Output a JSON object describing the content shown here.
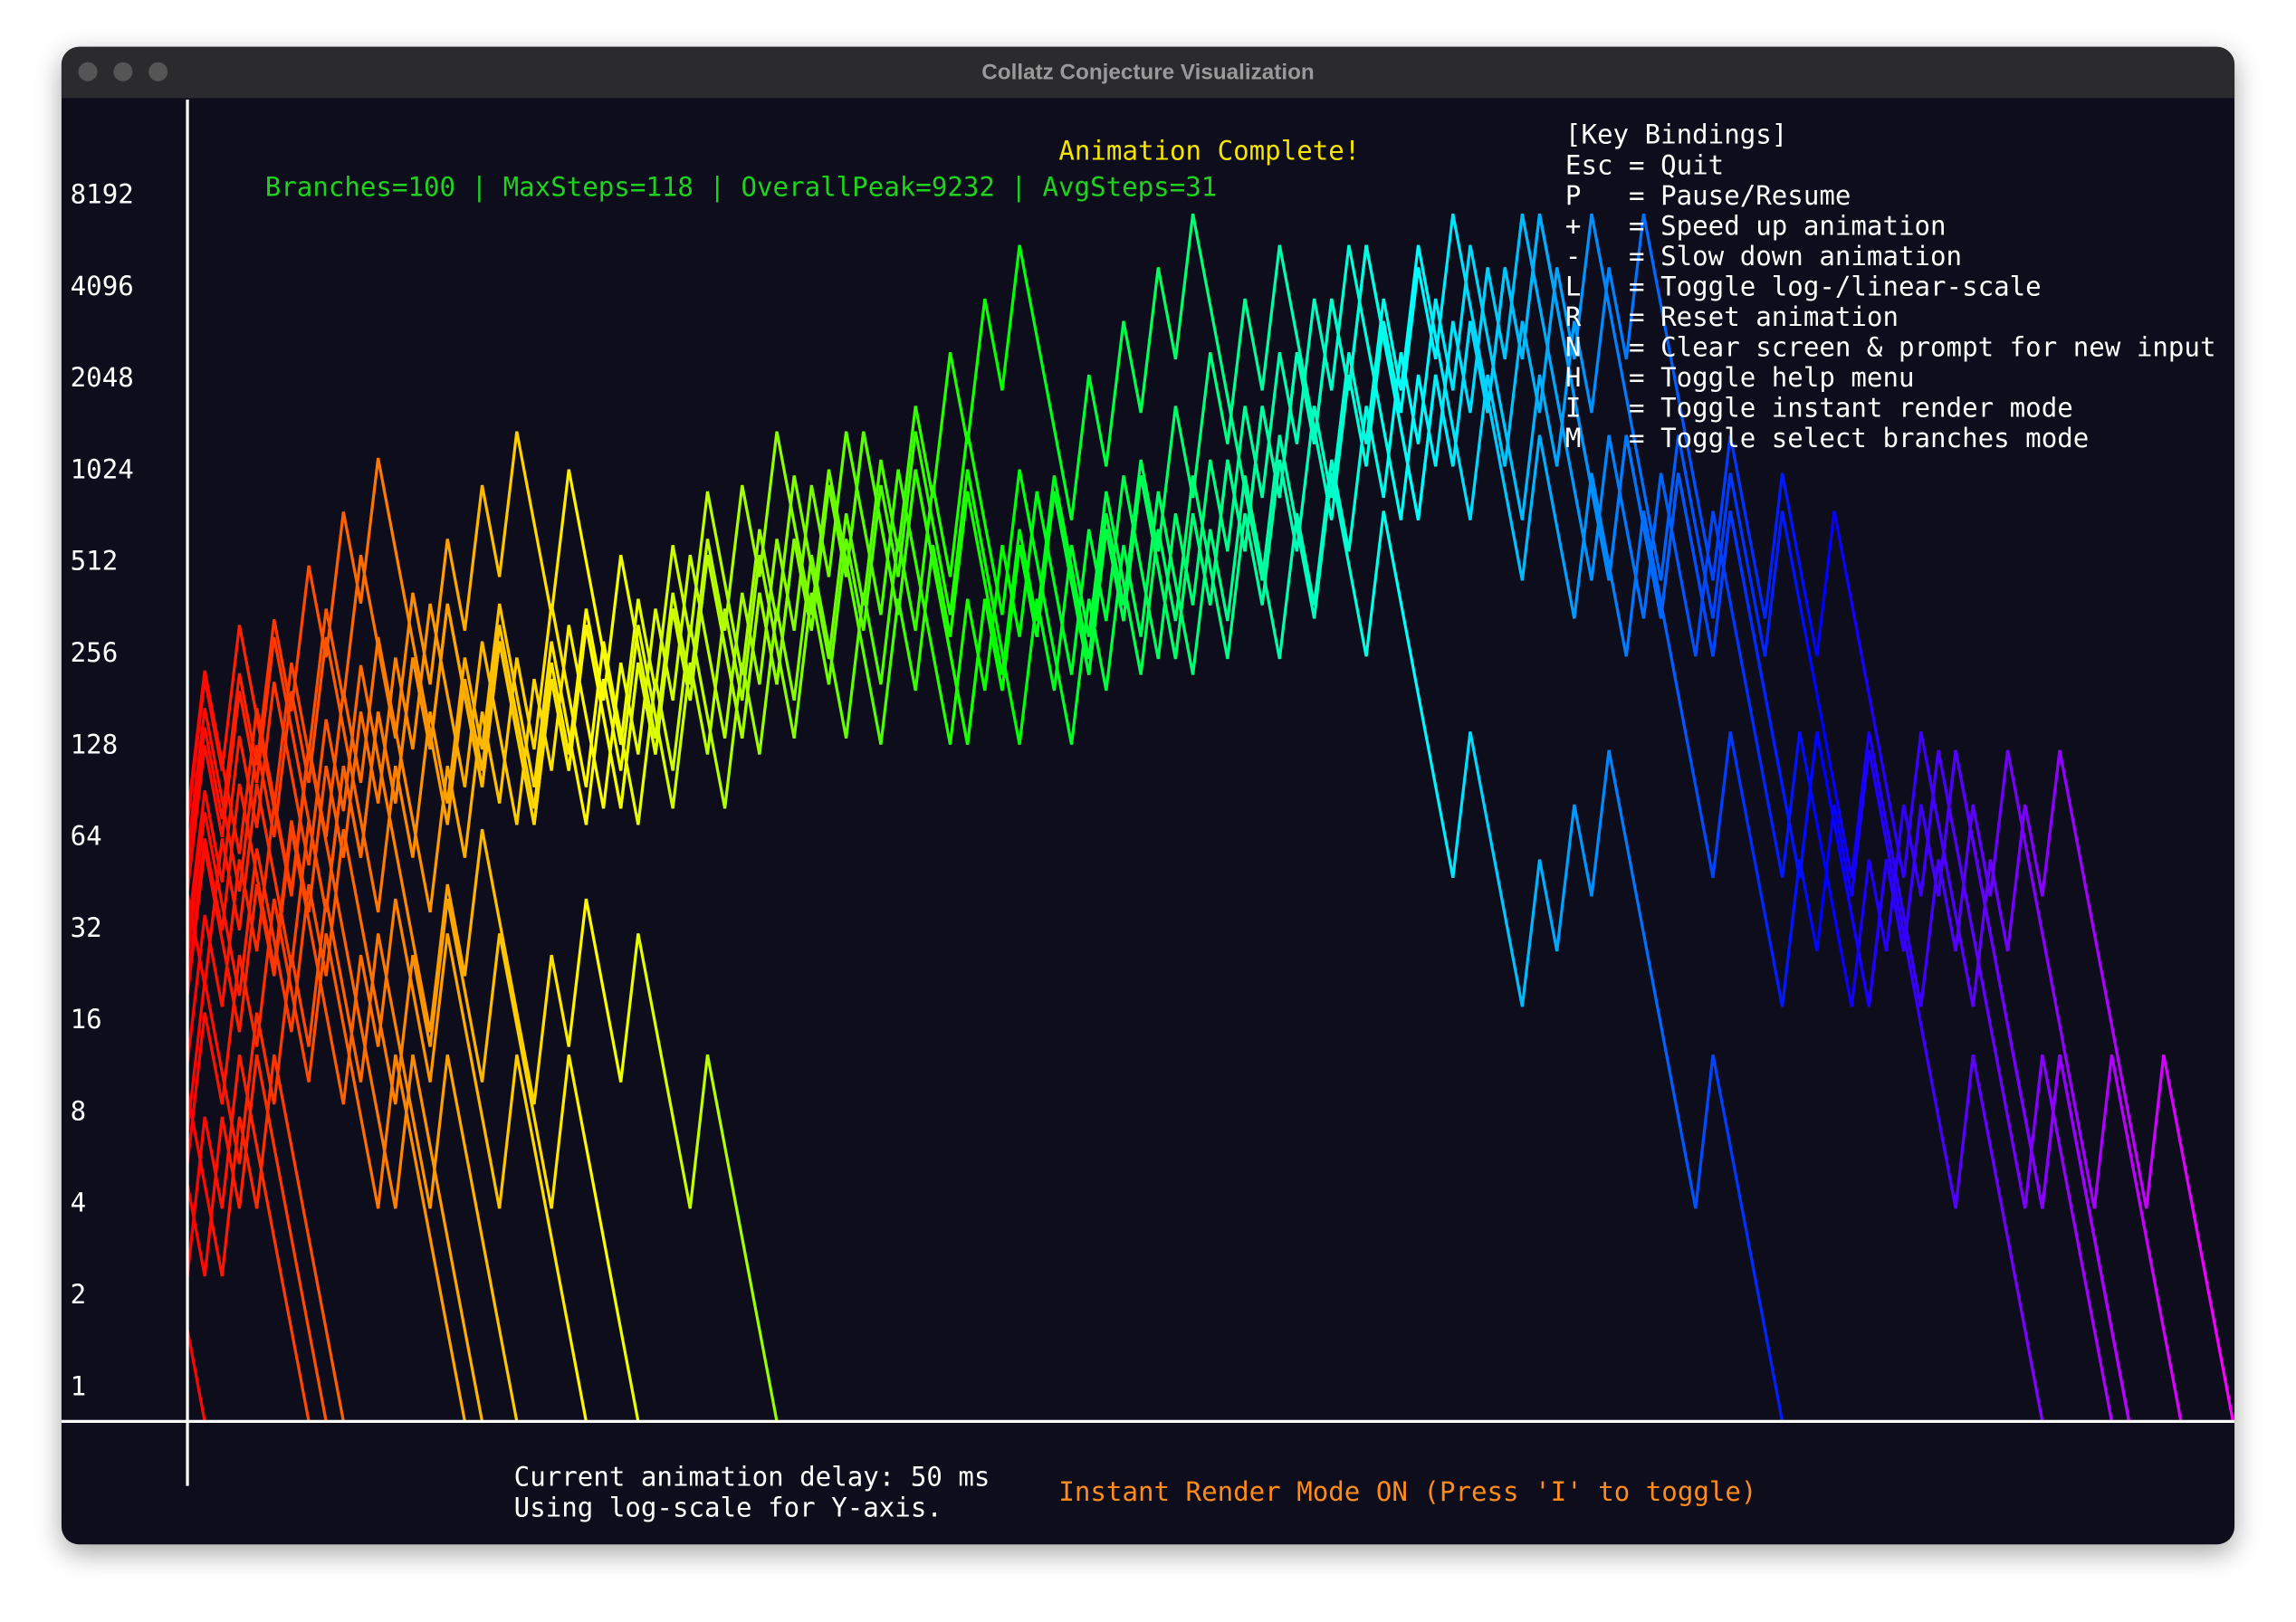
{
  "window": {
    "title": "Collatz Conjecture Visualization"
  },
  "chart_data": {
    "type": "line",
    "status": "Animation Complete!",
    "stats": "Branches=100 | MaxSteps=118 | OverallPeak=9232 | AvgSteps=31",
    "log_scale": true,
    "log_base": 2,
    "xlim": [
      0,
      118
    ],
    "ylim": [
      1,
      21900
    ],
    "yticks": [
      1,
      2,
      4,
      8,
      16,
      32,
      64,
      128,
      256,
      512,
      1024,
      2048,
      4096,
      8192
    ],
    "gradient": [
      "#ff0000",
      "#ffff00",
      "#00ff00",
      "#00ffff",
      "#0000ff",
      "#ff00ff"
    ],
    "series": [
      {
        "values": [
          97,
          292,
          146,
          73,
          220,
          110,
          55,
          166,
          83,
          250,
          125,
          376,
          188,
          94,
          47,
          142,
          71,
          214,
          107,
          322,
          161,
          484,
          242,
          121,
          364,
          182,
          91,
          274,
          137,
          412,
          206,
          103,
          310,
          155,
          466,
          233,
          700,
          350,
          175,
          526,
          263,
          790,
          395,
          1186,
          593,
          1780,
          890,
          445,
          1336,
          668,
          334,
          167,
          502,
          251,
          754,
          377,
          1132,
          566,
          283,
          850,
          425,
          1276,
          638,
          319,
          958,
          479,
          1438,
          719,
          2158,
          1079,
          3238,
          1619,
          4858,
          2429,
          7288,
          3644,
          1822,
          911,
          2734,
          1367,
          4102,
          2051,
          6154,
          3077,
          9232,
          4616,
          2308,
          1154,
          577,
          1732,
          866,
          433,
          1300,
          650,
          325,
          976,
          488,
          244,
          122,
          61,
          184,
          92,
          46,
          23,
          70,
          35,
          106,
          53,
          160,
          80,
          40,
          20,
          10,
          5,
          16,
          8,
          4,
          2,
          1
        ]
      },
      {
        "values": [
          73,
          220,
          110,
          55,
          166,
          83,
          250,
          125,
          376,
          188,
          94,
          47,
          142,
          71,
          214,
          107,
          322,
          161,
          484,
          242,
          121,
          364,
          182,
          91,
          274,
          137,
          412,
          206,
          103,
          310,
          155,
          466,
          233,
          700,
          350,
          175,
          526,
          263,
          790,
          395,
          1186,
          593,
          1780,
          890,
          445,
          1336,
          668,
          334,
          167,
          502,
          251,
          754,
          377,
          1132,
          566,
          283,
          850,
          425,
          1276,
          638,
          319,
          958,
          479,
          1438,
          719,
          2158,
          1079,
          3238,
          1619,
          4858,
          2429,
          7288,
          3644,
          1822,
          911,
          2734,
          1367,
          4102,
          2051,
          6154,
          3077,
          9232,
          4616,
          2308,
          1154,
          577,
          1732,
          866,
          433,
          1300,
          650,
          325,
          976,
          488,
          244,
          122,
          61,
          184,
          92,
          46,
          23,
          70,
          35,
          106,
          53,
          160,
          80,
          40,
          20,
          10,
          5,
          16,
          8,
          4,
          2,
          1
        ]
      },
      {
        "values": [
          55,
          166,
          83,
          250,
          125,
          376,
          188,
          94,
          47,
          142,
          71,
          214,
          107,
          322,
          161,
          484,
          242,
          121,
          364,
          182,
          91,
          274,
          137,
          412,
          206,
          103,
          310,
          155,
          466,
          233,
          700,
          350,
          175,
          526,
          263,
          790,
          395,
          1186,
          593,
          1780,
          890,
          445,
          1336,
          668,
          334,
          167,
          502,
          251,
          754,
          377,
          1132,
          566,
          283,
          850,
          425,
          1276,
          638,
          319,
          958,
          479,
          1438,
          719,
          2158,
          1079,
          3238,
          1619,
          4858,
          2429,
          7288,
          3644,
          1822,
          911,
          2734,
          1367,
          4102,
          2051,
          6154,
          3077,
          9232,
          4616,
          2308,
          1154,
          577,
          1732,
          866,
          433,
          1300,
          650,
          325,
          976,
          488,
          244,
          122,
          61,
          184,
          92,
          46,
          23,
          70,
          35,
          106,
          53,
          160,
          80,
          40,
          20,
          10,
          5,
          16,
          8,
          4,
          2,
          1
        ]
      },
      {
        "values": [
          54,
          27,
          82,
          41,
          124,
          62,
          31,
          94,
          47,
          142,
          71,
          214,
          107,
          322,
          161,
          484,
          242,
          121,
          364,
          182,
          91,
          274,
          137,
          412,
          206,
          103,
          310,
          155,
          466,
          233,
          700,
          350,
          175,
          526,
          263,
          790,
          395,
          1186,
          593,
          1780,
          890,
          445,
          1336,
          668,
          334,
          167,
          502,
          251,
          754,
          377,
          1132,
          566,
          283,
          850,
          425,
          1276,
          638,
          319,
          958,
          479,
          1438,
          719,
          2158,
          1079,
          3238,
          1619,
          4858,
          2429,
          7288,
          3644,
          1822,
          911,
          2734,
          1367,
          4102,
          2051,
          6154,
          3077,
          9232,
          4616,
          2308,
          1154,
          577,
          1732,
          866,
          433,
          1300,
          650,
          325,
          976,
          488,
          244,
          122,
          61,
          184,
          92,
          46,
          23,
          70,
          35,
          106,
          53,
          160,
          80,
          40,
          20,
          10,
          5,
          16,
          8,
          4,
          2,
          1
        ]
      },
      {
        "values": [
          27,
          82,
          41,
          124,
          62,
          31,
          94,
          47,
          142,
          71,
          214,
          107,
          322,
          161,
          484,
          242,
          121,
          364,
          182,
          91,
          274,
          137,
          412,
          206,
          103,
          310,
          155,
          466,
          233,
          700,
          350,
          175,
          526,
          263,
          790,
          395,
          1186,
          593,
          1780,
          890,
          445,
          1336,
          668,
          334,
          167,
          502,
          251,
          754,
          377,
          1132,
          566,
          283,
          850,
          425,
          1276,
          638,
          319,
          958,
          479,
          1438,
          719,
          2158,
          1079,
          3238,
          1619,
          4858,
          2429,
          7288,
          3644,
          1822,
          911,
          2734,
          1367,
          4102,
          2051,
          6154,
          3077,
          9232,
          4616,
          2308,
          1154,
          577,
          1732,
          866,
          433,
          1300,
          650,
          325,
          976,
          488,
          244,
          122,
          61,
          184,
          92,
          46,
          23,
          70,
          35,
          106,
          53,
          160,
          80,
          40,
          20,
          10,
          5,
          16,
          8,
          4,
          2,
          1
        ]
      },
      {
        "values": [
          63,
          190,
          95,
          286,
          143,
          430,
          215,
          646,
          323,
          970,
          485,
          1456,
          728,
          364,
          182,
          91,
          274,
          137,
          412,
          206,
          103,
          310,
          155,
          466,
          233,
          700,
          350,
          175,
          526,
          263,
          790,
          395,
          1186,
          593,
          1780,
          890,
          445,
          1336,
          668,
          334,
          167,
          502,
          251,
          754,
          377,
          1132,
          566,
          283,
          850,
          425,
          1276,
          638,
          319,
          958,
          479,
          1438,
          719,
          2158,
          1079,
          3238,
          1619,
          4858,
          2429,
          7288,
          3644,
          1822,
          911,
          2734,
          1367,
          4102,
          2051,
          6154,
          3077,
          9232,
          4616,
          2308,
          1154,
          577,
          1732,
          866,
          433,
          1300,
          650,
          325,
          976,
          488,
          244,
          122,
          61,
          184,
          92,
          46,
          23,
          70,
          35,
          106,
          53,
          160,
          80,
          40,
          20,
          10,
          5,
          16,
          8,
          4,
          2,
          1
        ]
      },
      {
        "values": [
          91,
          274,
          137,
          412,
          206,
          103,
          310,
          155,
          466,
          233,
          700,
          350,
          175,
          526,
          263,
          790,
          395,
          1186,
          593,
          1780,
          890,
          445,
          1336,
          668,
          334,
          167,
          502,
          251,
          754,
          377,
          1132,
          566,
          283,
          850,
          425,
          1276,
          638,
          319,
          958,
          479,
          1438,
          719,
          2158,
          1079,
          3238,
          1619,
          4858,
          2429,
          7288,
          3644,
          1822,
          911,
          2734,
          1367,
          4102,
          2051,
          6154,
          3077,
          9232,
          4616,
          2308,
          1154,
          577,
          1732,
          866,
          433,
          1300,
          650,
          325,
          976,
          488,
          244,
          122,
          61,
          184,
          92,
          46,
          23,
          70,
          35,
          106,
          53,
          160,
          80,
          40,
          20,
          10,
          5,
          16,
          8,
          4,
          2,
          1
        ]
      },
      {
        "values": [
          39,
          118,
          59,
          178,
          89,
          268,
          134,
          67,
          202,
          101,
          304,
          152,
          76,
          38,
          19,
          58,
          29,
          88,
          44,
          22,
          11,
          34,
          17,
          52,
          26,
          13,
          40,
          20,
          10,
          5,
          16,
          8,
          4,
          2,
          1
        ]
      },
      {
        "values": [
          33,
          100,
          50,
          25,
          76,
          38,
          19,
          58,
          29,
          88,
          44,
          22,
          11,
          34,
          17,
          52,
          26,
          13,
          40,
          20,
          10,
          5,
          16,
          8,
          4,
          2,
          1
        ]
      },
      {
        "values": [
          25,
          76,
          38,
          19,
          58,
          29,
          88,
          44,
          22,
          11,
          34,
          17,
          52,
          26,
          13,
          40,
          20,
          10,
          5,
          16,
          8,
          4,
          2,
          1
        ]
      },
      {
        "values": [
          15,
          46,
          23,
          70,
          35,
          106,
          53,
          160,
          80,
          40,
          20,
          10,
          5,
          16,
          8,
          4,
          2,
          1
        ]
      },
      {
        "values": [
          9,
          28,
          14,
          7,
          22,
          11,
          34,
          17,
          52,
          26,
          13,
          40,
          20,
          10,
          5,
          16,
          8,
          4,
          2,
          1
        ]
      },
      {
        "values": [
          7,
          22,
          11,
          34,
          17,
          52,
          26,
          13,
          40,
          20,
          10,
          5,
          16,
          8,
          4,
          2,
          1
        ]
      },
      {
        "values": [
          12,
          6,
          3,
          10,
          5,
          16,
          8,
          4,
          2,
          1
        ]
      },
      {
        "values": [
          6,
          3,
          10,
          5,
          16,
          8,
          4,
          2,
          1
        ]
      },
      {
        "values": [
          3,
          10,
          5,
          16,
          8,
          4,
          2,
          1
        ]
      },
      {
        "values": [
          2,
          1
        ]
      }
    ]
  },
  "help": {
    "title": "[Key Bindings]",
    "lines": [
      "Esc = Quit",
      "P   = Pause/Resume",
      "+   = Speed up animation",
      "-   = Slow down animation",
      "L   = Toggle log-/linear-scale",
      "R   = Reset animation",
      "N   = Clear screen & prompt for new input",
      "H   = Toggle help menu",
      "I   = Toggle instant render mode",
      "M   = Toggle select branches mode"
    ]
  },
  "footer": {
    "delay": "Current animation delay: 50 ms",
    "scale": "Using log-scale for Y-axis.",
    "mode": "Instant Render Mode ON (Press 'I' to toggle)"
  }
}
